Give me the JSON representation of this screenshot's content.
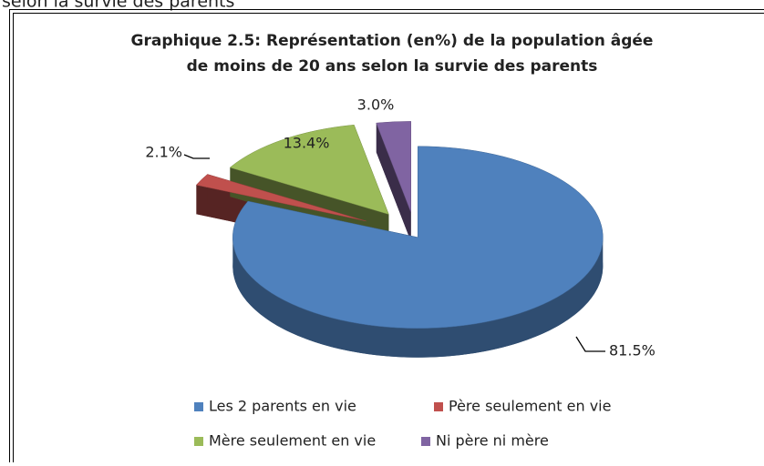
{
  "caption": "selon la survie des parents",
  "chart_data": {
    "type": "pie",
    "title": [
      "Graphique 2.5: Représentation (en%) de la population âgée",
      "de moins de 20 ans selon la survie des parents"
    ],
    "categories": [
      "Les 2 parents en vie",
      "Père seulement en vie",
      "Mère seulement en vie",
      "Ni père ni mère"
    ],
    "values": [
      81.5,
      2.1,
      13.4,
      3.0
    ],
    "value_labels": [
      "81.5%",
      "2.1%",
      "13.4%",
      "3.0%"
    ],
    "colors": [
      "#4f81bd",
      "#c0504d",
      "#9bbb59",
      "#8064a2"
    ],
    "legend": "bottom"
  }
}
